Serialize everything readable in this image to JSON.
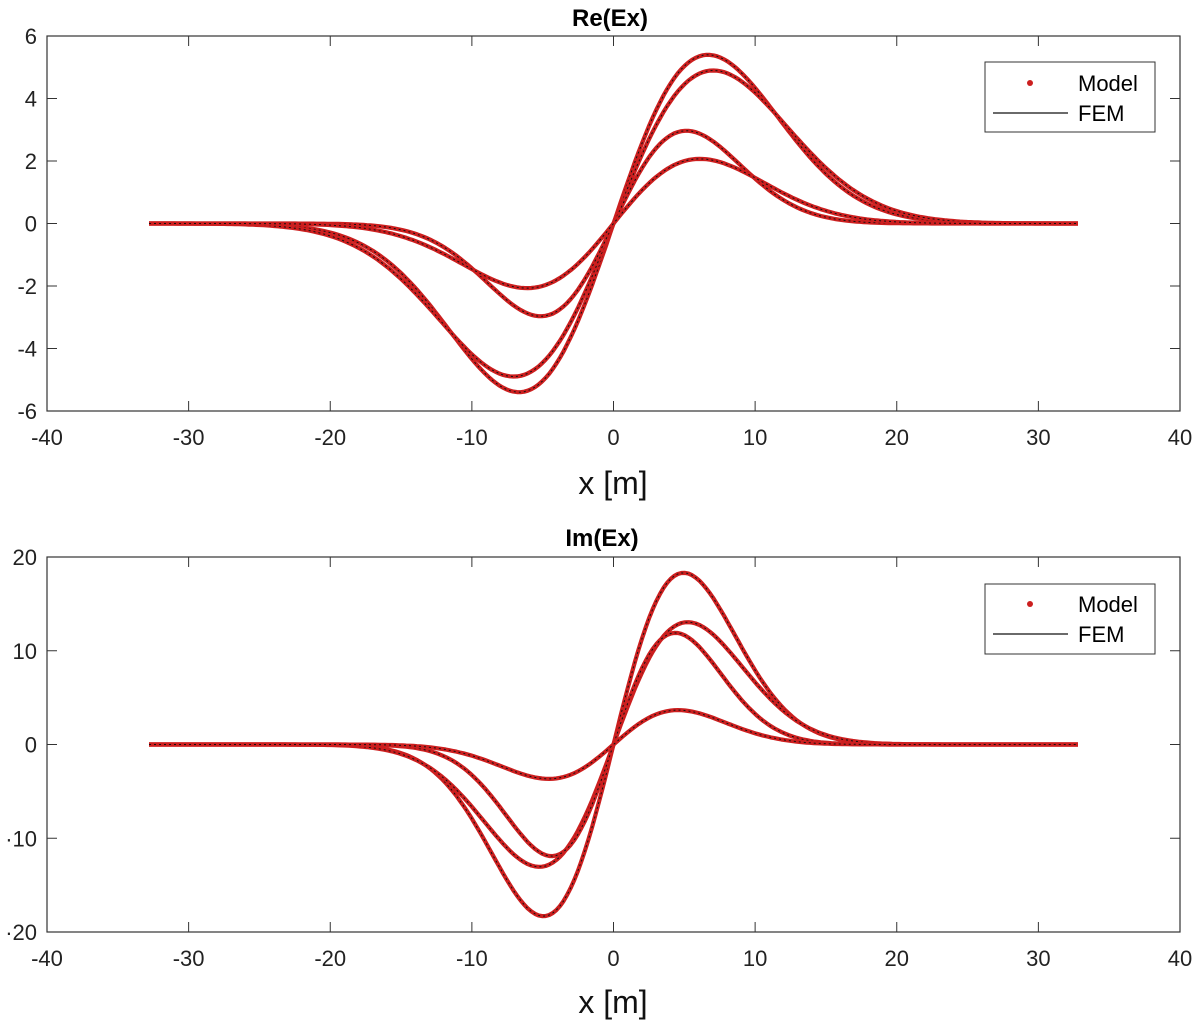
{
  "colors": {
    "model": "#cc1f1f",
    "fem": "#111111",
    "axis": "#333333"
  },
  "chart_data": [
    {
      "type": "line",
      "title": "Re(Ex)",
      "xlabel": "x [m]",
      "ylabel": "",
      "xlim": [
        -40,
        40
      ],
      "ylim": [
        -6,
        6
      ],
      "xticks": [
        -40,
        -30,
        -20,
        -10,
        0,
        10,
        20,
        30,
        40
      ],
      "yticks": [
        -6,
        -4,
        -2,
        0,
        2,
        4,
        6
      ],
      "xtick_labels": [
        "-40",
        "-30",
        "-20",
        "-10",
        "0",
        "10",
        "20",
        "30",
        "40"
      ],
      "ytick_labels": [
        "-6",
        "-4",
        "-2",
        "0",
        "2",
        "4",
        "6"
      ],
      "legend": {
        "position": "top-right",
        "entries": [
          "Model",
          "FEM"
        ]
      },
      "x_range": [
        -32.8,
        32.8
      ],
      "curves": [
        {
          "peak_x": 6.8,
          "peak": 5.5,
          "spread": 8.5
        },
        {
          "peak_x": 7.2,
          "peak": 5.0,
          "spread": 9.0
        },
        {
          "peak_x": 5.2,
          "peak": 3.0,
          "spread": 7.0
        },
        {
          "peak_x": 6.2,
          "peak": 2.1,
          "spread": 7.5
        }
      ]
    },
    {
      "type": "line",
      "title": "Im(Ex)",
      "xlabel": "x [m]",
      "ylabel": "",
      "xlim": [
        -40,
        40
      ],
      "ylim": [
        -20,
        20
      ],
      "xticks": [
        -40,
        -30,
        -20,
        -10,
        0,
        10,
        20,
        30,
        40
      ],
      "yticks": [
        -20,
        -10,
        0,
        10,
        20
      ],
      "xtick_labels": [
        "-40",
        "-30",
        "-20",
        "-10",
        "0",
        "10",
        "20",
        "30",
        "40"
      ],
      "ytick_labels": [
        "·20",
        "·10",
        "0",
        "10",
        "20"
      ],
      "legend": {
        "position": "top-right",
        "entries": [
          "Model",
          "FEM"
        ]
      },
      "x_range": [
        -32.8,
        32.8
      ],
      "curves": [
        {
          "peak_x": 5.0,
          "peak": 18.5,
          "spread": 4.0
        },
        {
          "peak_x": 5.3,
          "peak": 13.2,
          "spread": 6.5
        },
        {
          "peak_x": 4.4,
          "peak": 12.0,
          "spread": 3.2
        },
        {
          "peak_x": 4.6,
          "peak": 3.7,
          "spread": 5.5
        }
      ]
    }
  ]
}
